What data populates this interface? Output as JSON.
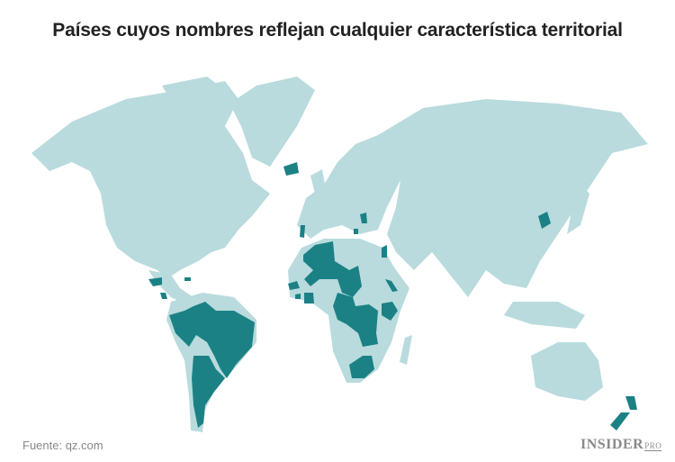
{
  "title": "Países cuyos nombres reflejan cualquier característica territorial",
  "source": "Fuente: qz.com",
  "logo": {
    "main": "INSIDER",
    "suffix": "PRO"
  },
  "colors": {
    "land": "#b9dbdd",
    "highlighted": "#1b8185",
    "background": "#ffffff"
  }
}
